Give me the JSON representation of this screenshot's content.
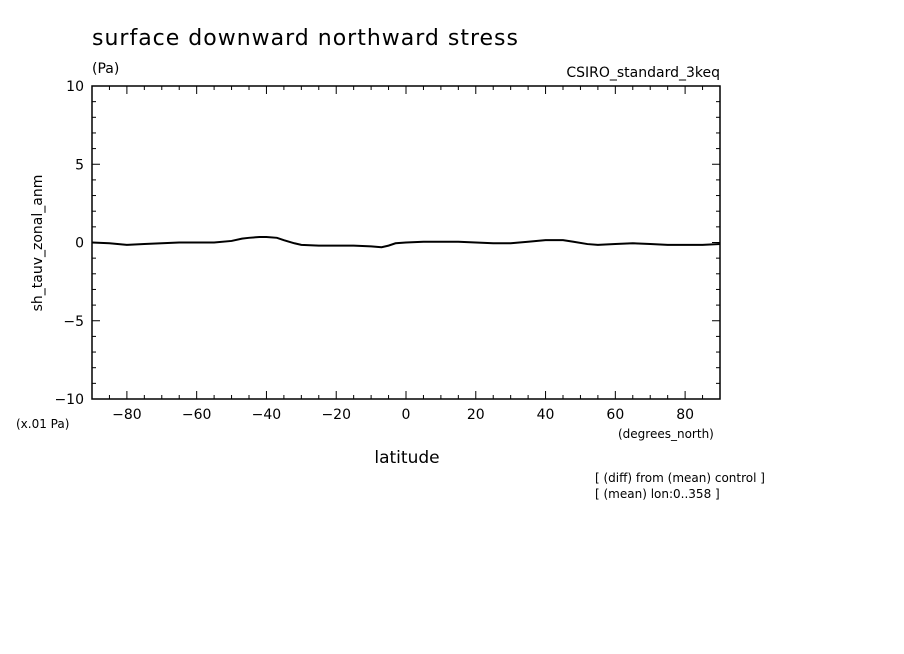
{
  "chart_data": {
    "type": "line",
    "title": "surface downward northward stress",
    "units": "(Pa)",
    "dataset": "CSIRO_standard_3keq",
    "ylabel": "sh_tauv_zonal_anm",
    "yscale_note": "(x.01 Pa)",
    "xlabel": "latitude",
    "xunits": "(degrees_north)",
    "notes": [
      "[ (diff) from (mean) control ]",
      "[ (mean) lon:0..358 ]"
    ],
    "xlim": [
      -90,
      90
    ],
    "ylim": [
      -10,
      10
    ],
    "xticks": [
      -80,
      -60,
      -40,
      -20,
      0,
      20,
      40,
      60,
      80
    ],
    "yticks": [
      -10,
      -5,
      0,
      5,
      10
    ],
    "xtick_labels": [
      "−80",
      "−60",
      "−40",
      "−20",
      "0",
      "20",
      "40",
      "60",
      "80"
    ],
    "ytick_labels": [
      "−10",
      "−5",
      "0",
      "5",
      "10"
    ],
    "line_color": "#000000",
    "series": [
      {
        "x": [
          -90,
          -85,
          -80,
          -75,
          -70,
          -65,
          -60,
          -55,
          -50,
          -47,
          -45,
          -42,
          -40,
          -37,
          -35,
          -32,
          -30,
          -25,
          -20,
          -15,
          -10,
          -7,
          -5,
          -3,
          0,
          5,
          10,
          15,
          20,
          25,
          30,
          35,
          40,
          45,
          48,
          52,
          55,
          60,
          65,
          70,
          75,
          80,
          85,
          90
        ],
        "y": [
          0.0,
          -0.05,
          -0.15,
          -0.1,
          -0.05,
          0.0,
          0.0,
          0.0,
          0.1,
          0.25,
          0.3,
          0.35,
          0.35,
          0.3,
          0.15,
          -0.05,
          -0.15,
          -0.2,
          -0.2,
          -0.2,
          -0.25,
          -0.3,
          -0.2,
          -0.05,
          0.0,
          0.05,
          0.05,
          0.05,
          0.0,
          -0.05,
          -0.05,
          0.05,
          0.15,
          0.15,
          0.05,
          -0.1,
          -0.15,
          -0.1,
          -0.05,
          -0.1,
          -0.15,
          -0.15,
          -0.15,
          -0.1
        ]
      }
    ]
  }
}
